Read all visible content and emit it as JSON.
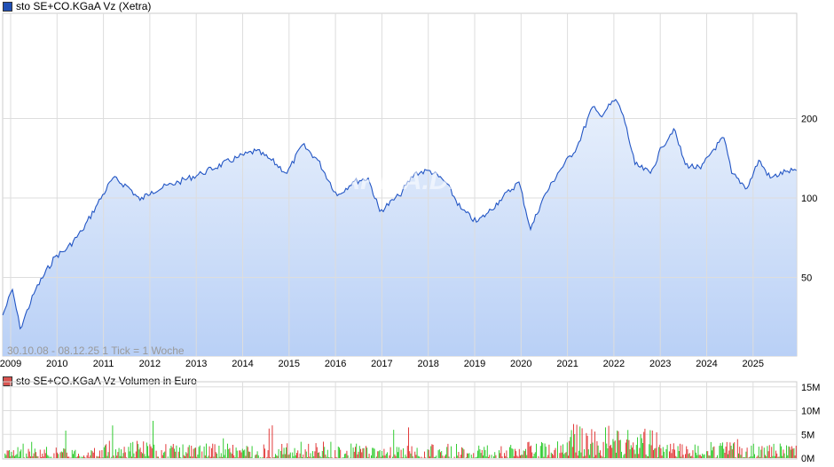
{
  "chart_data": [
    {
      "type": "area",
      "title": "sto SE+CO.KGaA Vz (Xetra)",
      "legend_color": "#1f4fb5",
      "line_color": "#2255c4",
      "fill_top": "#e8f0fc",
      "fill_bottom": "#b9d0f6",
      "yscale": "log",
      "ylim": [
        22,
        300
      ],
      "yticks": [
        50,
        100,
        200
      ],
      "xticks": [
        "2009",
        "2010",
        "2011",
        "2012",
        "2013",
        "2014",
        "2015",
        "2016",
        "2017",
        "2018",
        "2019",
        "2020",
        "2021",
        "2022",
        "2023",
        "2024",
        "2025"
      ],
      "range_note": "30.10.08 - 08.12.25   1 Tick = 1 Woche",
      "watermark": "ARIVA.DE",
      "grid": true,
      "points": [
        [
          "2008-10-30",
          36
        ],
        [
          "2009-01",
          45
        ],
        [
          "2009-03",
          32
        ],
        [
          "2009-07",
          45
        ],
        [
          "2009-12",
          60
        ],
        [
          "2010-03",
          64
        ],
        [
          "2010-07",
          75
        ],
        [
          "2010-11",
          95
        ],
        [
          "2011-03",
          119
        ],
        [
          "2011-07",
          110
        ],
        [
          "2011-10",
          98
        ],
        [
          "2012-01",
          106
        ],
        [
          "2012-08",
          115
        ],
        [
          "2013-02",
          124
        ],
        [
          "2013-11",
          142
        ],
        [
          "2014-04",
          151
        ],
        [
          "2014-08",
          139
        ],
        [
          "2014-12",
          124
        ],
        [
          "2015-04",
          159
        ],
        [
          "2015-08",
          139
        ],
        [
          "2016-01",
          102
        ],
        [
          "2016-05",
          115
        ],
        [
          "2016-09",
          119
        ],
        [
          "2016-12",
          89
        ],
        [
          "2017-05",
          102
        ],
        [
          "2017-09",
          124
        ],
        [
          "2018-01",
          127
        ],
        [
          "2018-05",
          115
        ],
        [
          "2018-09",
          91
        ],
        [
          "2019-01",
          81
        ],
        [
          "2019-04",
          88
        ],
        [
          "2019-07",
          98
        ],
        [
          "2019-12",
          115
        ],
        [
          "2020-03",
          76
        ],
        [
          "2020-06",
          98
        ],
        [
          "2020-10",
          124
        ],
        [
          "2021-03",
          156
        ],
        [
          "2021-07",
          221
        ],
        [
          "2021-09",
          205
        ],
        [
          "2022-01",
          236
        ],
        [
          "2022-03",
          205
        ],
        [
          "2022-06",
          134
        ],
        [
          "2022-10",
          124
        ],
        [
          "2023-01",
          156
        ],
        [
          "2023-04",
          183
        ],
        [
          "2023-07",
          134
        ],
        [
          "2023-11",
          129
        ],
        [
          "2024-02",
          151
        ],
        [
          "2024-05",
          169
        ],
        [
          "2024-07",
          124
        ],
        [
          "2024-11",
          109
        ],
        [
          "2025-02",
          139
        ],
        [
          "2025-05",
          119
        ],
        [
          "2025-09",
          126
        ],
        [
          "2025-12-08",
          127
        ]
      ]
    },
    {
      "type": "bar",
      "title": "sto SE+CO.KGaA Vz Volumen in Euro",
      "legend_color": "#d9534f",
      "up_color": "#33cc33",
      "down_color": "#e23b3b",
      "ylim": [
        0,
        15
      ],
      "yticks": [
        "0M",
        "5M",
        "10M",
        "15M"
      ],
      "typical_volume_by_year_M": {
        "2009": 1.5,
        "2010": 1.5,
        "2011": 2.5,
        "2012": 2,
        "2013": 2,
        "2014": 2,
        "2015": 2.2,
        "2016": 2,
        "2017": 1.8,
        "2018": 2,
        "2019": 1.8,
        "2020": 2.2,
        "2021": 4.5,
        "2022": 4,
        "2023": 2.2,
        "2024": 2.5,
        "2025": 2
      }
    }
  ]
}
